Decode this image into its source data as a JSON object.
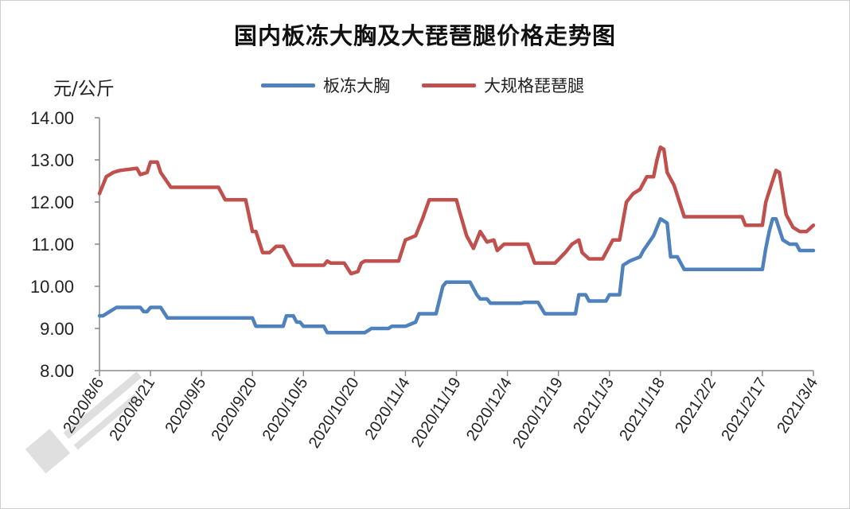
{
  "title": "国内板冻大胸及大琵琶腿价格走势图",
  "unit": "元/公斤",
  "legend": [
    {
      "name": "板冻大胸",
      "color": "#4F81BD"
    },
    {
      "name": "大规格琵琶腿",
      "color": "#C0504D"
    }
  ],
  "chart_data": {
    "type": "line",
    "title": "国内板冻大胸及大琵琶腿价格走势图",
    "ylabel": "元/公斤",
    "xlabel": "",
    "ylim": [
      8.0,
      14.0
    ],
    "ytick_labels": [
      "8.00",
      "9.00",
      "10.00",
      "11.00",
      "12.00",
      "13.00",
      "14.00"
    ],
    "x_range": [
      "2020/8/6",
      "2021/3/4"
    ],
    "x_tick_labels": [
      "2020/8/6",
      "2020/8/21",
      "2020/9/5",
      "2020/9/20",
      "2020/10/5",
      "2020/10/20",
      "2020/11/4",
      "2020/11/19",
      "2020/12/4",
      "2020/12/19",
      "2021/1/3",
      "2021/1/18",
      "2021/2/2",
      "2021/2/17",
      "2021/3/4"
    ],
    "grid": false,
    "legend_position": "top",
    "series": [
      {
        "name": "板冻大胸",
        "color": "#4F81BD",
        "points": [
          [
            "2020/8/6",
            9.3
          ],
          [
            "2020/8/7",
            9.3
          ],
          [
            "2020/8/9",
            9.4
          ],
          [
            "2020/8/11",
            9.5
          ],
          [
            "2020/8/18",
            9.5
          ],
          [
            "2020/8/19",
            9.4
          ],
          [
            "2020/8/20",
            9.4
          ],
          [
            "2020/8/21",
            9.5
          ],
          [
            "2020/8/24",
            9.5
          ],
          [
            "2020/8/26",
            9.25
          ],
          [
            "2020/9/1",
            9.25
          ],
          [
            "2020/9/12",
            9.25
          ],
          [
            "2020/9/20",
            9.25
          ],
          [
            "2020/9/21",
            9.05
          ],
          [
            "2020/9/29",
            9.05
          ],
          [
            "2020/9/30",
            9.3
          ],
          [
            "2020/10/2",
            9.3
          ],
          [
            "2020/10/3",
            9.15
          ],
          [
            "2020/10/4",
            9.15
          ],
          [
            "2020/10/5",
            9.05
          ],
          [
            "2020/10/11",
            9.05
          ],
          [
            "2020/10/12",
            8.9
          ],
          [
            "2020/10/23",
            8.9
          ],
          [
            "2020/10/25",
            9.0
          ],
          [
            "2020/10/30",
            9.0
          ],
          [
            "2020/10/31",
            9.05
          ],
          [
            "2020/11/4",
            9.05
          ],
          [
            "2020/11/7",
            9.15
          ],
          [
            "2020/11/8",
            9.35
          ],
          [
            "2020/11/13",
            9.35
          ],
          [
            "2020/11/15",
            10.0
          ],
          [
            "2020/11/16",
            10.1
          ],
          [
            "2020/11/23",
            10.1
          ],
          [
            "2020/11/25",
            9.8
          ],
          [
            "2020/11/26",
            9.7
          ],
          [
            "2020/11/28",
            9.7
          ],
          [
            "2020/11/29",
            9.6
          ],
          [
            "2020/12/8",
            9.6
          ],
          [
            "2020/12/9",
            9.62
          ],
          [
            "2020/12/13",
            9.62
          ],
          [
            "2020/12/15",
            9.35
          ],
          [
            "2020/12/24",
            9.35
          ],
          [
            "2020/12/25",
            9.8
          ],
          [
            "2020/12/27",
            9.8
          ],
          [
            "2020/12/28",
            9.65
          ],
          [
            "2021/1/1",
            9.65
          ],
          [
            "2021/1/2",
            9.65
          ],
          [
            "2021/1/3",
            9.8
          ],
          [
            "2021/1/6",
            9.8
          ],
          [
            "2021/1/7",
            10.5
          ],
          [
            "2021/1/9",
            10.6
          ],
          [
            "2021/1/12",
            10.7
          ],
          [
            "2021/1/13",
            10.85
          ],
          [
            "2021/1/16",
            11.2
          ],
          [
            "2021/1/17",
            11.4
          ],
          [
            "2021/1/18",
            11.6
          ],
          [
            "2021/1/19",
            11.55
          ],
          [
            "2021/1/20",
            11.5
          ],
          [
            "2021/1/21",
            10.7
          ],
          [
            "2021/1/23",
            10.7
          ],
          [
            "2021/1/25",
            10.4
          ],
          [
            "2021/2/17",
            10.4
          ],
          [
            "2021/2/18",
            10.9
          ],
          [
            "2021/2/19",
            11.3
          ],
          [
            "2021/2/20",
            11.6
          ],
          [
            "2021/2/21",
            11.6
          ],
          [
            "2021/2/23",
            11.1
          ],
          [
            "2021/2/25",
            11.0
          ],
          [
            "2021/2/27",
            11.0
          ],
          [
            "2021/2/28",
            10.85
          ],
          [
            "2021/3/4",
            10.85
          ]
        ]
      },
      {
        "name": "大规格琵琶腿",
        "color": "#C0504D",
        "points": [
          [
            "2020/8/6",
            12.2
          ],
          [
            "2020/8/7",
            12.4
          ],
          [
            "2020/8/8",
            12.6
          ],
          [
            "2020/8/10",
            12.7
          ],
          [
            "2020/8/12",
            12.75
          ],
          [
            "2020/8/17",
            12.8
          ],
          [
            "2020/8/18",
            12.65
          ],
          [
            "2020/8/20",
            12.7
          ],
          [
            "2020/8/21",
            12.95
          ],
          [
            "2020/8/23",
            12.95
          ],
          [
            "2020/8/24",
            12.7
          ],
          [
            "2020/8/27",
            12.35
          ],
          [
            "2020/9/10",
            12.35
          ],
          [
            "2020/9/12",
            12.05
          ],
          [
            "2020/9/18",
            12.05
          ],
          [
            "2020/9/20",
            11.3
          ],
          [
            "2020/9/21",
            11.3
          ],
          [
            "2020/9/23",
            10.8
          ],
          [
            "2020/9/25",
            10.8
          ],
          [
            "2020/9/27",
            10.95
          ],
          [
            "2020/9/29",
            10.95
          ],
          [
            "2020/10/2",
            10.5
          ],
          [
            "2020/10/11",
            10.5
          ],
          [
            "2020/10/12",
            10.6
          ],
          [
            "2020/10/13",
            10.55
          ],
          [
            "2020/10/17",
            10.55
          ],
          [
            "2020/10/19",
            10.3
          ],
          [
            "2020/10/21",
            10.35
          ],
          [
            "2020/10/22",
            10.55
          ],
          [
            "2020/10/23",
            10.6
          ],
          [
            "2020/11/2",
            10.6
          ],
          [
            "2020/11/4",
            11.1
          ],
          [
            "2020/11/7",
            11.2
          ],
          [
            "2020/11/9",
            11.6
          ],
          [
            "2020/11/11",
            12.05
          ],
          [
            "2020/11/17",
            12.05
          ],
          [
            "2020/11/19",
            12.05
          ],
          [
            "2020/11/20",
            11.75
          ],
          [
            "2020/11/22",
            11.2
          ],
          [
            "2020/11/24",
            10.9
          ],
          [
            "2020/11/26",
            11.3
          ],
          [
            "2020/11/28",
            11.05
          ],
          [
            "2020/11/30",
            11.1
          ],
          [
            "2020/12/1",
            10.85
          ],
          [
            "2020/12/3",
            11.0
          ],
          [
            "2020/12/10",
            11.0
          ],
          [
            "2020/12/12",
            10.55
          ],
          [
            "2020/12/18",
            10.55
          ],
          [
            "2020/12/21",
            10.8
          ],
          [
            "2020/12/23",
            11.0
          ],
          [
            "2020/12/25",
            11.1
          ],
          [
            "2020/12/26",
            10.8
          ],
          [
            "2020/12/28",
            10.65
          ],
          [
            "2021/1/1",
            10.65
          ],
          [
            "2021/1/4",
            11.1
          ],
          [
            "2021/1/6",
            11.1
          ],
          [
            "2021/1/8",
            12.0
          ],
          [
            "2021/1/10",
            12.2
          ],
          [
            "2021/1/12",
            12.3
          ],
          [
            "2021/1/14",
            12.6
          ],
          [
            "2021/1/16",
            12.6
          ],
          [
            "2021/1/17",
            13.0
          ],
          [
            "2021/1/18",
            13.3
          ],
          [
            "2021/1/19",
            13.25
          ],
          [
            "2021/1/20",
            12.7
          ],
          [
            "2021/1/22",
            12.4
          ],
          [
            "2021/1/25",
            11.65
          ],
          [
            "2021/2/11",
            11.65
          ],
          [
            "2021/2/12",
            11.45
          ],
          [
            "2021/2/17",
            11.45
          ],
          [
            "2021/2/18",
            12.0
          ],
          [
            "2021/2/20",
            12.5
          ],
          [
            "2021/2/21",
            12.75
          ],
          [
            "2021/2/22",
            12.7
          ],
          [
            "2021/2/24",
            11.7
          ],
          [
            "2021/2/26",
            11.4
          ],
          [
            "2021/2/28",
            11.3
          ],
          [
            "2021/3/2",
            11.3
          ],
          [
            "2021/3/4",
            11.45
          ]
        ]
      }
    ]
  }
}
